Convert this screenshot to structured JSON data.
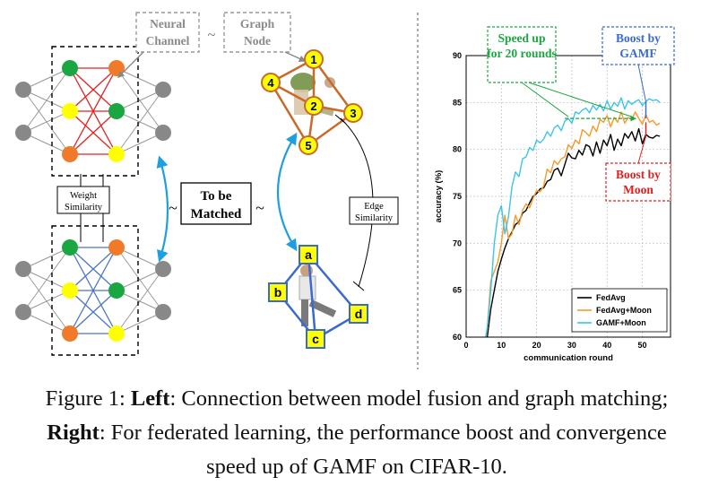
{
  "left": {
    "neural_channel": "Neural Channel",
    "graph_node": "Graph Node",
    "tilde": "~",
    "weight_similarity": "Weight Similarity",
    "to_be_matched": "To be Matched",
    "edge_similarity": "Edge Similarity",
    "graph1_nodes": [
      "1",
      "2",
      "3",
      "4",
      "5"
    ],
    "graph2_nodes": [
      "a",
      "b",
      "c",
      "d"
    ],
    "colors": {
      "green": "#1aa640",
      "yellow": "#ffff00",
      "orange": "#f07a2a",
      "gray": "#888888",
      "red_edges": "#e02020",
      "blue_edges": "#4a74c4",
      "cyan_arrow": "#1ea0e0",
      "graph1_edges": "#c96a2a",
      "graph2_edges": "#3a6ad0"
    }
  },
  "right": {
    "annotations": {
      "speed_up": "Speed up for 20 rounds",
      "boost_gamf": "Boost by GAMF",
      "boost_moon": "Boost by Moon"
    },
    "annotation_colors": {
      "speed_up": "#1aa640",
      "boost_gamf": "#3a6ad0",
      "boost_moon": "#e02020"
    }
  },
  "chart_data": {
    "type": "line",
    "xlabel": "communication round",
    "ylabel": "accuracy (%)",
    "xlim": [
      0,
      58
    ],
    "ylim": [
      60,
      90
    ],
    "xticks": [
      0,
      10,
      20,
      30,
      40,
      50
    ],
    "yticks": [
      60,
      65,
      70,
      75,
      80,
      85,
      90
    ],
    "grid": true,
    "legend_position": "bottom-right",
    "series": [
      {
        "name": "FedAvg",
        "color": "#000000",
        "x": [
          5,
          6,
          7,
          8,
          9,
          10,
          11,
          12,
          13,
          14,
          15,
          16,
          17,
          18,
          19,
          20,
          21,
          22,
          23,
          24,
          25,
          26,
          27,
          28,
          29,
          30,
          31,
          32,
          33,
          34,
          35,
          36,
          37,
          38,
          39,
          40,
          41,
          42,
          43,
          44,
          45,
          46,
          47,
          48,
          49,
          50,
          51,
          52,
          53,
          54,
          55
        ],
        "y": [
          58,
          60,
          63,
          65,
          67,
          68.3,
          69.5,
          70.5,
          71.2,
          72,
          72.3,
          73.2,
          73.5,
          74.3,
          75,
          75.3,
          75.8,
          75.9,
          76.6,
          76.8,
          77.8,
          78,
          77.2,
          78.4,
          79.6,
          79.1,
          79,
          79.9,
          79.4,
          80.5,
          80.3,
          79.3,
          80.8,
          79.6,
          81,
          80.4,
          81.6,
          79.9,
          81.1,
          80.4,
          81.7,
          81.2,
          81.9,
          80.9,
          82.2,
          80.6,
          81.6,
          81.3,
          81.2,
          81.5,
          81.4
        ]
      },
      {
        "name": "FedAvg+Moon",
        "color": "#f59a2b",
        "x": [
          5,
          6,
          7,
          8,
          9,
          10,
          11,
          12,
          13,
          14,
          15,
          16,
          17,
          18,
          19,
          20,
          21,
          22,
          23,
          24,
          25,
          26,
          27,
          28,
          29,
          30,
          31,
          32,
          33,
          34,
          35,
          36,
          37,
          38,
          39,
          40,
          41,
          42,
          43,
          44,
          45,
          46,
          47,
          48,
          49,
          50,
          51,
          52,
          53,
          54,
          55
        ],
        "y": [
          58,
          61,
          66,
          67,
          68,
          70,
          73,
          70.5,
          71,
          73,
          72,
          73.5,
          74.2,
          73.8,
          74.8,
          75.6,
          75.5,
          76.1,
          77.9,
          77.5,
          78.8,
          78.4,
          79,
          79.2,
          80.5,
          80.1,
          81,
          80.6,
          82.1,
          81.8,
          81.4,
          82.5,
          81.9,
          83.2,
          82.9,
          83.6,
          82.4,
          83.4,
          82.9,
          84,
          82.8,
          83.4,
          83.2,
          84,
          83.3,
          82.7,
          83.7,
          82.9,
          83.1,
          82.6,
          82.8
        ]
      },
      {
        "name": "GAMF+Moon",
        "color": "#3ec4ea",
        "x": [
          5,
          6,
          7,
          8,
          9,
          10,
          11,
          12,
          13,
          14,
          15,
          16,
          17,
          18,
          19,
          20,
          21,
          22,
          23,
          24,
          25,
          26,
          27,
          28,
          29,
          30,
          31,
          32,
          33,
          34,
          35,
          36,
          37,
          38,
          39,
          40,
          41,
          42,
          43,
          44,
          45,
          46,
          47,
          48,
          49,
          50,
          51,
          52,
          53,
          54,
          55
        ],
        "y": [
          59,
          61,
          65,
          70,
          73,
          74,
          71,
          72.8,
          76,
          77.6,
          77.1,
          79,
          79.2,
          80.2,
          79.9,
          81,
          80.7,
          81.1,
          81.9,
          81.4,
          82.3,
          82.6,
          82,
          83,
          83.3,
          82.8,
          84,
          83.8,
          84.2,
          84.4,
          83.9,
          84.7,
          84.2,
          84.8,
          84.1,
          85.2,
          84.3,
          85,
          84.6,
          85.5,
          84.3,
          85.2,
          84.8,
          85.1,
          85.3,
          84.7,
          85.1,
          85.4,
          85.2,
          85.3,
          85
        ]
      }
    ]
  },
  "caption": {
    "prefix": "Figure 1: ",
    "left_label": "Left",
    "left_text": ": Connection between model fusion and graph matching; ",
    "right_label": "Right",
    "right_text": ": For federated learning, the performance boost and convergence speed up of GAMF on CIFAR-10."
  }
}
